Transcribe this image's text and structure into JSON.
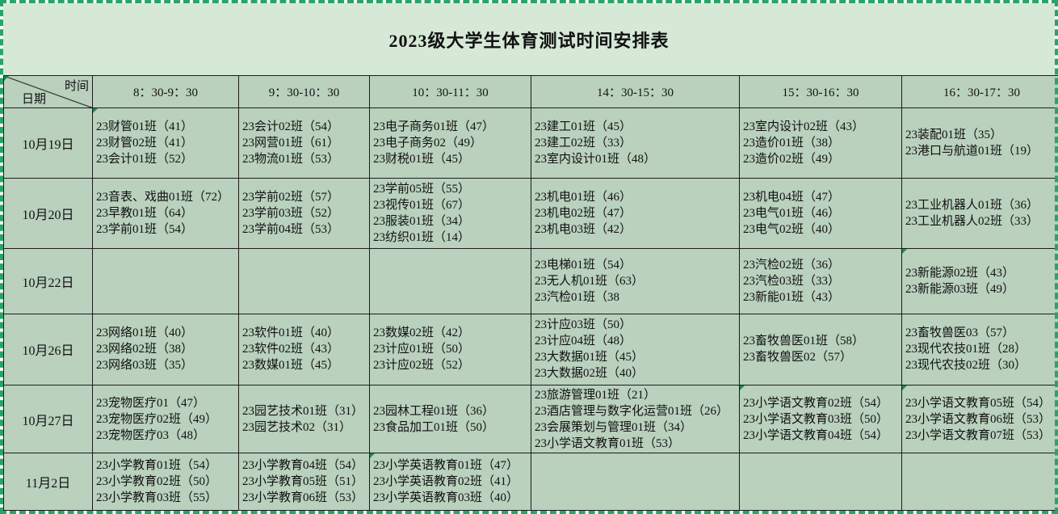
{
  "page": {
    "title": "2023级大学生体育测试时间安排表"
  },
  "colors": {
    "page_bg": "#d6e8d6",
    "cell_bg": "#b9d1bd",
    "grid_line": "#1c1c1c",
    "selection_dash_green": "#28a566",
    "marker_green": "#1f8a4c"
  },
  "table": {
    "corner": {
      "top_label": "时间",
      "bottom_label": "日期"
    },
    "time_slots": [
      "8：30-9：30",
      "9：30-10：30",
      "10：30-11：30",
      "14：30-15：30",
      "15：30-16：30",
      "16：30-17：30"
    ],
    "rows": [
      {
        "date": "10月19日",
        "cells": [
          [
            "23财管01班（41）",
            "23财管02班（41）",
            "23会计01班（52）"
          ],
          [
            "23会计02班（54）",
            "23网营01班（61）",
            "23物流01班（53）"
          ],
          [
            "23电子商务01班（47）",
            "23电子商务02（49）",
            "23财税01班（45）"
          ],
          [
            "23建工01班（45）",
            "23建工02班（33）",
            "23室内设计01班（48）"
          ],
          [
            "23室内设计02班（43）",
            "23造价01班（38）",
            "23造价02班（49）"
          ],
          [
            "23装配01班（35）",
            "23港口与航道01班（19）"
          ]
        ]
      },
      {
        "date": "10月20日",
        "cells": [
          [
            "23音表、戏曲01班（72）",
            "23早教01班（64）",
            "23学前01班（54）"
          ],
          [
            "23学前02班（57）",
            "23学前03班（52）",
            "23学前04班（53）"
          ],
          [
            "23学前05班（55）",
            "23视传01班（67）",
            "23服装01班（34）",
            "23纺织01班（14）"
          ],
          [
            "23机电01班（46）",
            "23机电02班（47）",
            "23机电03班（42）"
          ],
          [
            "23机电04班（47）",
            "23电气01班（46）",
            "23电气02班（40）"
          ],
          [
            "23工业机器人01班（36）",
            "23工业机器人02班（33）"
          ]
        ]
      },
      {
        "date": "10月22日",
        "cells": [
          [],
          [],
          [],
          [
            "23电梯01班（54）",
            "23无人机01班（63）",
            "23汽检01班（38"
          ],
          [
            "23汽检02班（36）",
            "23汽检03班（33）",
            "23新能01班（43）"
          ],
          [
            "23新能源02班（43）",
            "23新能源03班（49）"
          ]
        ]
      },
      {
        "date": "10月26日",
        "cells": [
          [
            "23网络01班（40）",
            "23网络02班（38）",
            "23网络03班（35）"
          ],
          [
            "23软件01班（40）",
            "23软件02班（43）",
            "23数媒01班（45）"
          ],
          [
            "23数媒02班（42）",
            "23计应01班（50）",
            "23计应02班（52）"
          ],
          [
            "23计应03班（50）",
            "23计应04班（48）",
            "23大数据01班（45）",
            "23大数据02班（40）"
          ],
          [
            "23畜牧兽医01班（58）",
            "23畜牧兽医02（57）"
          ],
          [
            "23畜牧兽医03（57）",
            "23现代农技01班（28）",
            "23现代农技02班（30）"
          ]
        ]
      },
      {
        "date": "10月27日",
        "cells": [
          [
            "23宠物医疗01（47）",
            "23宠物医疗02班（49）",
            "23宠物医疗03（48）"
          ],
          [
            "23园艺技术01班（31）",
            "23园艺技术02（31）"
          ],
          [
            "23园林工程01班（36）",
            "23食品加工01班（50）"
          ],
          [
            "23旅游管理01班（21）",
            "23酒店管理与数字化运营01班（26）",
            "23会展策划与管理01班（34）",
            "23小学语文教育01班（53）"
          ],
          [
            "23小学语文教育02班（54）",
            "23小学语文教育03班（50）",
            "23小学语文教育04班（54）"
          ],
          [
            "23小学语文教育05班（54）",
            "23小学语文教育06班（53）",
            "23小学语文教育07班（53）"
          ]
        ]
      },
      {
        "date": "11月2日",
        "cells": [
          [
            "23小学教育01班（54）",
            "23小学教育02班（50）",
            "23小学教育03班（55）"
          ],
          [
            "23小学教育04班（54）",
            "23小学教育05班（51）",
            "23小学教育06班（53）"
          ],
          [
            "23小学英语教育01班（47）",
            "23小学英语教育02班（41）",
            "23小学英语教育03班（40）"
          ],
          [],
          [],
          []
        ]
      }
    ]
  }
}
